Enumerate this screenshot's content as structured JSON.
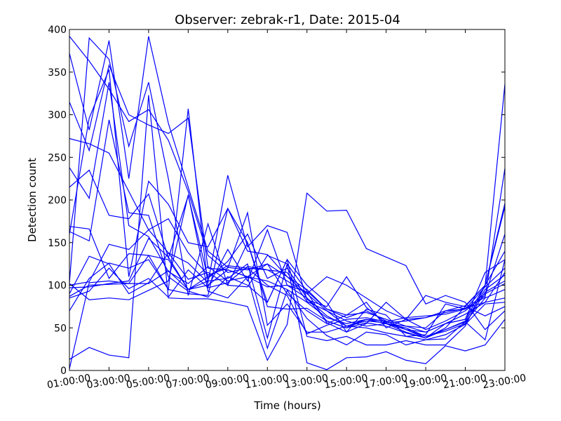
{
  "chart_data": {
    "type": "line",
    "title": "Observer: zebrak-r1, Date: 2015-04",
    "xlabel": "Time (hours)",
    "ylabel": "Detection count",
    "xlim": [
      1,
      23
    ],
    "ylim": [
      0,
      400
    ],
    "grid": false,
    "x": [
      1,
      2,
      3,
      4,
      5,
      6,
      7,
      8,
      9,
      10,
      11,
      12,
      13,
      14,
      15,
      16,
      17,
      18,
      19,
      20,
      21,
      22,
      23
    ],
    "x_tick_labels": [
      "01:00:00",
      "03:00:00",
      "05:00:00",
      "07:00:00",
      "09:00:00",
      "11:00:00",
      "13:00:00",
      "15:00:00",
      "17:00:00",
      "19:00:00",
      "21:00:00",
      "23:00:00"
    ],
    "y_ticks": [
      0,
      50,
      100,
      150,
      200,
      250,
      300,
      350,
      400
    ],
    "series_color": "#0000ff",
    "series": [
      {
        "values": [
          392,
          363,
          330,
          292,
          306,
          270,
          210,
          135,
          115,
          120,
          118,
          105,
          90,
          70,
          58,
          52,
          55,
          48,
          45,
          55,
          60,
          100,
          140
        ]
      },
      {
        "values": [
          372,
          282,
          387,
          225,
          392,
          290,
          215,
          140,
          121,
          118,
          125,
          110,
          95,
          72,
          65,
          68,
          60,
          52,
          45,
          55,
          60,
          115,
          130
        ]
      },
      {
        "values": [
          315,
          258,
          358,
          300,
          288,
          278,
          296,
          120,
          118,
          110,
          105,
          95,
          80,
          62,
          55,
          60,
          55,
          50,
          40,
          48,
          58,
          95,
          112
        ]
      },
      {
        "values": [
          272,
          266,
          255,
          210,
          165,
          138,
          107,
          115,
          100,
          98,
          135,
          125,
          93,
          72,
          62,
          70,
          58,
          48,
          40,
          46,
          55,
          92,
          105
        ]
      },
      {
        "values": [
          238,
          202,
          338,
          170,
          157,
          116,
          102,
          122,
          105,
          110,
          98,
          100,
          85,
          58,
          50,
          56,
          52,
          44,
          38,
          48,
          57,
          85,
          95
        ]
      },
      {
        "values": [
          215,
          235,
          182,
          178,
          207,
          132,
          205,
          108,
          128,
          160,
          108,
          120,
          85,
          64,
          52,
          50,
          44,
          40,
          36,
          42,
          54,
          78,
          80
        ]
      },
      {
        "values": [
          160,
          296,
          353,
          110,
          222,
          195,
          150,
          145,
          190,
          140,
          136,
          110,
          90,
          110,
          100,
          85,
          70,
          60,
          48,
          58,
          70,
          88,
          160
        ]
      },
      {
        "values": [
          103,
          390,
          365,
          263,
          338,
          225,
          88,
          172,
          100,
          150,
          80,
          130,
          100,
          80,
          45,
          55,
          80,
          60,
          88,
          80,
          75,
          100,
          192
        ]
      },
      {
        "values": [
          169,
          166,
          108,
          137,
          135,
          95,
          307,
          98,
          142,
          105,
          165,
          100,
          92,
          56,
          45,
          72,
          65,
          40,
          42,
          78,
          72,
          86,
          237
        ]
      },
      {
        "values": [
          90,
          134,
          125,
          90,
          103,
          138,
          126,
          103,
          229,
          145,
          170,
          162,
          83,
          75,
          110,
          74,
          55,
          52,
          50,
          70,
          72,
          98,
          120
        ]
      },
      {
        "values": [
          100,
          104,
          148,
          142,
          165,
          178,
          138,
          112,
          120,
          185,
          53,
          78,
          45,
          45,
          52,
          60,
          55,
          45,
          38,
          55,
          66,
          80,
          85
        ]
      },
      {
        "values": [
          97,
          98,
          102,
          105,
          155,
          133,
          95,
          100,
          118,
          110,
          125,
          90,
          70,
          55,
          65,
          80,
          50,
          60,
          62,
          70,
          76,
          100,
          196
        ]
      },
      {
        "values": [
          87,
          100,
          101,
          102,
          135,
          130,
          95,
          110,
          123,
          120,
          100,
          88,
          43,
          53,
          60,
          62,
          57,
          62,
          64,
          66,
          72,
          90,
          102
        ]
      },
      {
        "values": [
          85,
          93,
          120,
          96,
          108,
          86,
          118,
          97,
          103,
          122,
          118,
          115,
          81,
          70,
          52,
          58,
          56,
          58,
          62,
          68,
          73,
          80,
          115
        ]
      },
      {
        "values": [
          102,
          83,
          85,
          83,
          94,
          105,
          206,
          93,
          85,
          110,
          26,
          94,
          61,
          41,
          30,
          45,
          42,
          30,
          36,
          37,
          57,
          36,
          130
        ]
      },
      {
        "values": [
          70,
          108,
          126,
          120,
          130,
          95,
          90,
          88,
          190,
          150,
          75,
          72,
          73,
          58,
          50,
          60,
          58,
          48,
          38,
          50,
          75,
          64,
          75
        ]
      },
      {
        "values": [
          163,
          152,
          294,
          185,
          182,
          110,
          93,
          86,
          110,
          100,
          80,
          130,
          40,
          35,
          40,
          30,
          30,
          35,
          30,
          30,
          52,
          100,
          336
        ]
      },
      {
        "values": [
          13,
          27,
          18,
          15,
          323,
          85,
          84,
          84,
          80,
          75,
          12,
          54,
          208,
          187,
          188,
          143,
          133,
          123,
          78,
          88,
          80,
          48,
          70
        ]
      },
      {
        "values": [
          2,
          103,
          105,
          102,
          102,
          117,
          95,
          105,
          108,
          125,
          38,
          125,
          9,
          1,
          15,
          16,
          22,
          12,
          8,
          29,
          23,
          30,
          60
        ]
      }
    ]
  }
}
